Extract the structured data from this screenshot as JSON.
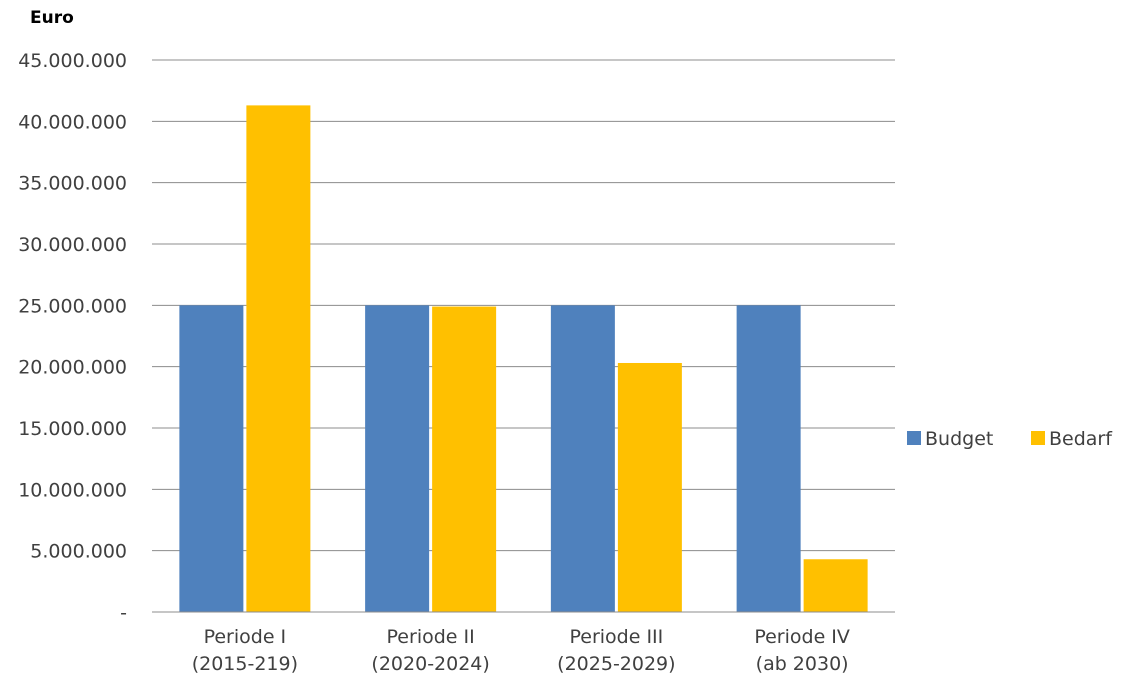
{
  "chart_data": {
    "type": "bar",
    "ylabel": "Euro",
    "ylim": [
      0,
      45000000
    ],
    "y_ticks": [
      {
        "value": 0,
        "label": "-"
      },
      {
        "value": 5000000,
        "label": "5.000.000"
      },
      {
        "value": 10000000,
        "label": "10.000.000"
      },
      {
        "value": 15000000,
        "label": "15.000.000"
      },
      {
        "value": 20000000,
        "label": "20.000.000"
      },
      {
        "value": 25000000,
        "label": "25.000.000"
      },
      {
        "value": 30000000,
        "label": "30.000.000"
      },
      {
        "value": 35000000,
        "label": "35.000.000"
      },
      {
        "value": 40000000,
        "label": "40.000.000"
      },
      {
        "value": 45000000,
        "label": "45.000.000"
      }
    ],
    "categories": [
      [
        "Periode I",
        "(2015-219)"
      ],
      [
        "Periode II",
        "(2020-2024)"
      ],
      [
        "Periode III",
        "(2025-2029)"
      ],
      [
        "Periode IV",
        "(ab 2030)"
      ]
    ],
    "series": [
      {
        "name": "Budget",
        "color": "#4f81bd",
        "values": [
          25000000,
          25000000,
          25000000,
          25000000
        ]
      },
      {
        "name": "Bedarf",
        "color": "#ffc000",
        "values": [
          41300000,
          24900000,
          20300000,
          4300000
        ]
      }
    ],
    "grid": true,
    "legend_position": "right"
  }
}
